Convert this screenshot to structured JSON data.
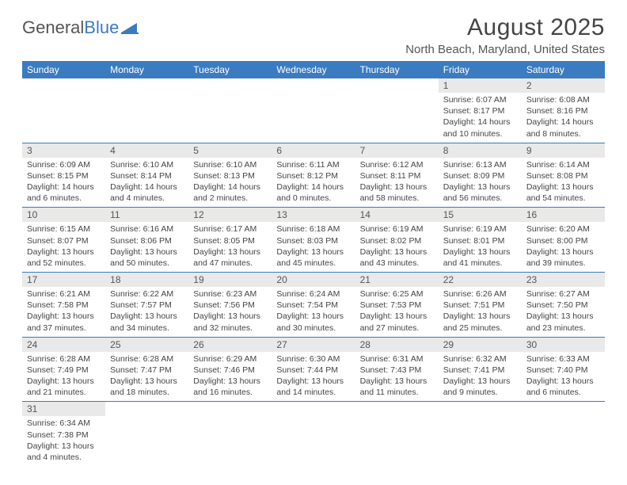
{
  "logo": {
    "part1": "General",
    "part2": "Blue"
  },
  "title": "August 2025",
  "location": "North Beach, Maryland, United States",
  "colors": {
    "header_bg": "#3b7bbf",
    "header_text": "#ffffff",
    "daynum_bg": "#e9e9e9",
    "row_border": "#3b7bbf",
    "text": "#444444",
    "page_bg": "#ffffff"
  },
  "weekdays": [
    "Sunday",
    "Monday",
    "Tuesday",
    "Wednesday",
    "Thursday",
    "Friday",
    "Saturday"
  ],
  "weeks": [
    [
      {
        "n": "",
        "sunrise": "",
        "sunset": "",
        "daylight": ""
      },
      {
        "n": "",
        "sunrise": "",
        "sunset": "",
        "daylight": ""
      },
      {
        "n": "",
        "sunrise": "",
        "sunset": "",
        "daylight": ""
      },
      {
        "n": "",
        "sunrise": "",
        "sunset": "",
        "daylight": ""
      },
      {
        "n": "",
        "sunrise": "",
        "sunset": "",
        "daylight": ""
      },
      {
        "n": "1",
        "sunrise": "Sunrise: 6:07 AM",
        "sunset": "Sunset: 8:17 PM",
        "daylight": "Daylight: 14 hours and 10 minutes."
      },
      {
        "n": "2",
        "sunrise": "Sunrise: 6:08 AM",
        "sunset": "Sunset: 8:16 PM",
        "daylight": "Daylight: 14 hours and 8 minutes."
      }
    ],
    [
      {
        "n": "3",
        "sunrise": "Sunrise: 6:09 AM",
        "sunset": "Sunset: 8:15 PM",
        "daylight": "Daylight: 14 hours and 6 minutes."
      },
      {
        "n": "4",
        "sunrise": "Sunrise: 6:10 AM",
        "sunset": "Sunset: 8:14 PM",
        "daylight": "Daylight: 14 hours and 4 minutes."
      },
      {
        "n": "5",
        "sunrise": "Sunrise: 6:10 AM",
        "sunset": "Sunset: 8:13 PM",
        "daylight": "Daylight: 14 hours and 2 minutes."
      },
      {
        "n": "6",
        "sunrise": "Sunrise: 6:11 AM",
        "sunset": "Sunset: 8:12 PM",
        "daylight": "Daylight: 14 hours and 0 minutes."
      },
      {
        "n": "7",
        "sunrise": "Sunrise: 6:12 AM",
        "sunset": "Sunset: 8:11 PM",
        "daylight": "Daylight: 13 hours and 58 minutes."
      },
      {
        "n": "8",
        "sunrise": "Sunrise: 6:13 AM",
        "sunset": "Sunset: 8:09 PM",
        "daylight": "Daylight: 13 hours and 56 minutes."
      },
      {
        "n": "9",
        "sunrise": "Sunrise: 6:14 AM",
        "sunset": "Sunset: 8:08 PM",
        "daylight": "Daylight: 13 hours and 54 minutes."
      }
    ],
    [
      {
        "n": "10",
        "sunrise": "Sunrise: 6:15 AM",
        "sunset": "Sunset: 8:07 PM",
        "daylight": "Daylight: 13 hours and 52 minutes."
      },
      {
        "n": "11",
        "sunrise": "Sunrise: 6:16 AM",
        "sunset": "Sunset: 8:06 PM",
        "daylight": "Daylight: 13 hours and 50 minutes."
      },
      {
        "n": "12",
        "sunrise": "Sunrise: 6:17 AM",
        "sunset": "Sunset: 8:05 PM",
        "daylight": "Daylight: 13 hours and 47 minutes."
      },
      {
        "n": "13",
        "sunrise": "Sunrise: 6:18 AM",
        "sunset": "Sunset: 8:03 PM",
        "daylight": "Daylight: 13 hours and 45 minutes."
      },
      {
        "n": "14",
        "sunrise": "Sunrise: 6:19 AM",
        "sunset": "Sunset: 8:02 PM",
        "daylight": "Daylight: 13 hours and 43 minutes."
      },
      {
        "n": "15",
        "sunrise": "Sunrise: 6:19 AM",
        "sunset": "Sunset: 8:01 PM",
        "daylight": "Daylight: 13 hours and 41 minutes."
      },
      {
        "n": "16",
        "sunrise": "Sunrise: 6:20 AM",
        "sunset": "Sunset: 8:00 PM",
        "daylight": "Daylight: 13 hours and 39 minutes."
      }
    ],
    [
      {
        "n": "17",
        "sunrise": "Sunrise: 6:21 AM",
        "sunset": "Sunset: 7:58 PM",
        "daylight": "Daylight: 13 hours and 37 minutes."
      },
      {
        "n": "18",
        "sunrise": "Sunrise: 6:22 AM",
        "sunset": "Sunset: 7:57 PM",
        "daylight": "Daylight: 13 hours and 34 minutes."
      },
      {
        "n": "19",
        "sunrise": "Sunrise: 6:23 AM",
        "sunset": "Sunset: 7:56 PM",
        "daylight": "Daylight: 13 hours and 32 minutes."
      },
      {
        "n": "20",
        "sunrise": "Sunrise: 6:24 AM",
        "sunset": "Sunset: 7:54 PM",
        "daylight": "Daylight: 13 hours and 30 minutes."
      },
      {
        "n": "21",
        "sunrise": "Sunrise: 6:25 AM",
        "sunset": "Sunset: 7:53 PM",
        "daylight": "Daylight: 13 hours and 27 minutes."
      },
      {
        "n": "22",
        "sunrise": "Sunrise: 6:26 AM",
        "sunset": "Sunset: 7:51 PM",
        "daylight": "Daylight: 13 hours and 25 minutes."
      },
      {
        "n": "23",
        "sunrise": "Sunrise: 6:27 AM",
        "sunset": "Sunset: 7:50 PM",
        "daylight": "Daylight: 13 hours and 23 minutes."
      }
    ],
    [
      {
        "n": "24",
        "sunrise": "Sunrise: 6:28 AM",
        "sunset": "Sunset: 7:49 PM",
        "daylight": "Daylight: 13 hours and 21 minutes."
      },
      {
        "n": "25",
        "sunrise": "Sunrise: 6:28 AM",
        "sunset": "Sunset: 7:47 PM",
        "daylight": "Daylight: 13 hours and 18 minutes."
      },
      {
        "n": "26",
        "sunrise": "Sunrise: 6:29 AM",
        "sunset": "Sunset: 7:46 PM",
        "daylight": "Daylight: 13 hours and 16 minutes."
      },
      {
        "n": "27",
        "sunrise": "Sunrise: 6:30 AM",
        "sunset": "Sunset: 7:44 PM",
        "daylight": "Daylight: 13 hours and 14 minutes."
      },
      {
        "n": "28",
        "sunrise": "Sunrise: 6:31 AM",
        "sunset": "Sunset: 7:43 PM",
        "daylight": "Daylight: 13 hours and 11 minutes."
      },
      {
        "n": "29",
        "sunrise": "Sunrise: 6:32 AM",
        "sunset": "Sunset: 7:41 PM",
        "daylight": "Daylight: 13 hours and 9 minutes."
      },
      {
        "n": "30",
        "sunrise": "Sunrise: 6:33 AM",
        "sunset": "Sunset: 7:40 PM",
        "daylight": "Daylight: 13 hours and 6 minutes."
      }
    ],
    [
      {
        "n": "31",
        "sunrise": "Sunrise: 6:34 AM",
        "sunset": "Sunset: 7:38 PM",
        "daylight": "Daylight: 13 hours and 4 minutes."
      },
      {
        "n": "",
        "sunrise": "",
        "sunset": "",
        "daylight": ""
      },
      {
        "n": "",
        "sunrise": "",
        "sunset": "",
        "daylight": ""
      },
      {
        "n": "",
        "sunrise": "",
        "sunset": "",
        "daylight": ""
      },
      {
        "n": "",
        "sunrise": "",
        "sunset": "",
        "daylight": ""
      },
      {
        "n": "",
        "sunrise": "",
        "sunset": "",
        "daylight": ""
      },
      {
        "n": "",
        "sunrise": "",
        "sunset": "",
        "daylight": ""
      }
    ]
  ]
}
